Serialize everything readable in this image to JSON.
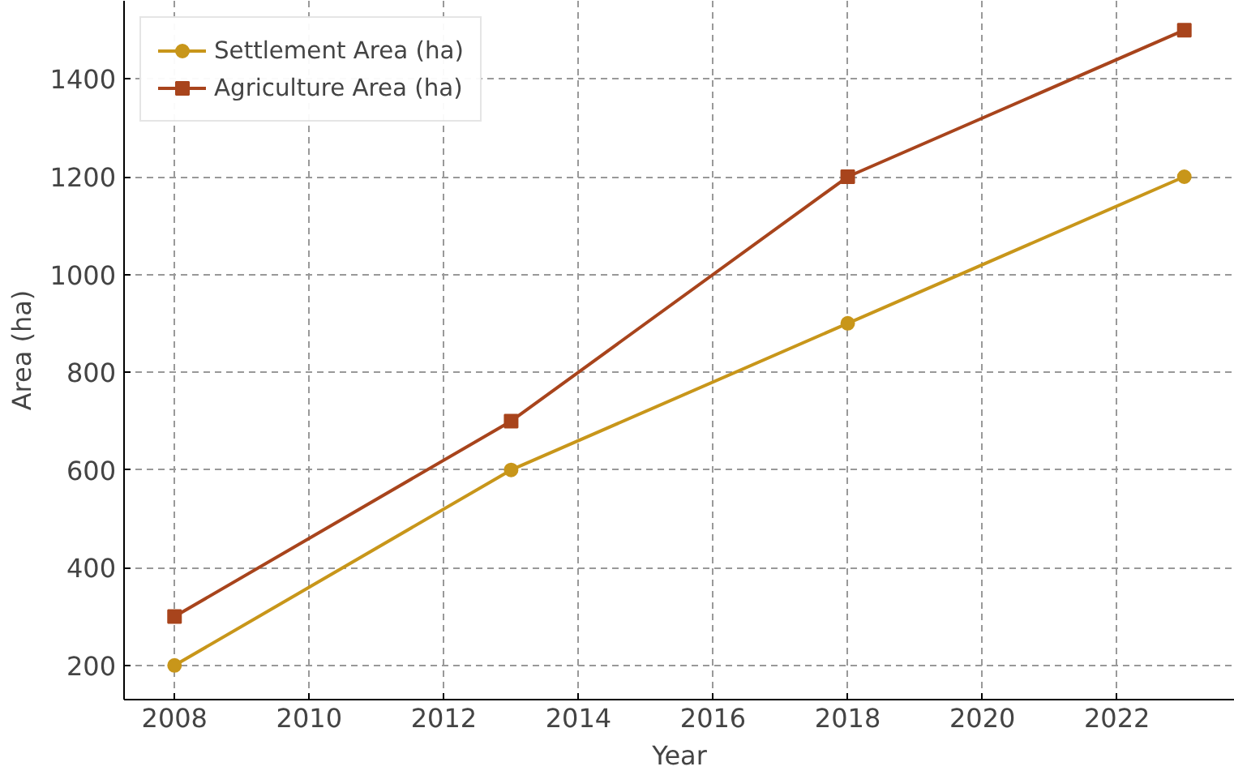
{
  "chart_data": {
    "type": "line",
    "xlabel": "Year",
    "ylabel": "Area (ha)",
    "x": [
      2008,
      2013,
      2018,
      2023
    ],
    "series": [
      {
        "name": "Settlement Area (ha)",
        "color": "#c8961a",
        "marker": "circle",
        "values": [
          200,
          600,
          900,
          1200
        ]
      },
      {
        "name": "Agriculture Area (ha)",
        "color": "#a8441c",
        "marker": "square",
        "values": [
          300,
          700,
          1200,
          1500
        ]
      }
    ],
    "xlim": [
      2007.25,
      2023.75
    ],
    "ylim": [
      130,
      1560
    ],
    "xticks": [
      2008,
      2010,
      2012,
      2014,
      2016,
      2018,
      2020,
      2022
    ],
    "yticks": [
      200,
      400,
      600,
      800,
      1000,
      1200,
      1400
    ],
    "grid": true,
    "legend": "top left",
    "line_style": "solid"
  }
}
